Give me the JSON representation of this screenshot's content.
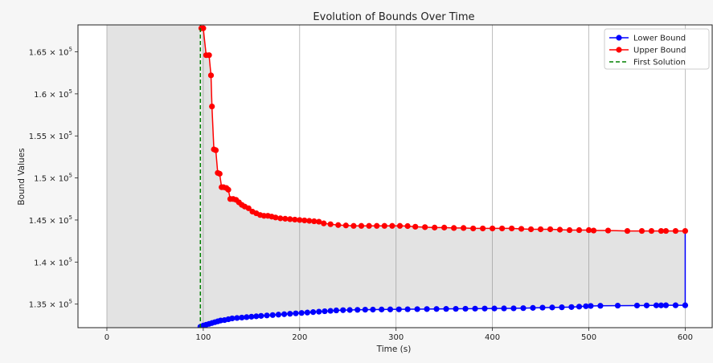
{
  "chart_data": {
    "type": "line",
    "title": "Evolution of Bounds Over Time",
    "xlabel": "Time (s)",
    "ylabel": "Bound Values",
    "xlim": [
      -30,
      628
    ],
    "ylim": [
      132200,
      168200
    ],
    "xticks": [
      0,
      100,
      200,
      300,
      400,
      500,
      600
    ],
    "yticks": [
      135000,
      140000,
      145000,
      150000,
      155000,
      160000,
      165000
    ],
    "ytick_mantissas": [
      "1.35",
      "1.4",
      "1.45",
      "1.5",
      "1.55",
      "1.6",
      "1.65"
    ],
    "ytick_base": "10",
    "ytick_exponent": "5",
    "grid": "vertical",
    "legend_position": "top-right",
    "shaded_regions": [
      {
        "x": [
          0,
          97
        ],
        "description": "before first solution"
      },
      {
        "x": [
          97,
          600
        ],
        "description": "gap between bounds"
      }
    ],
    "first_solution_x": 97,
    "series": [
      {
        "name": "Lower Bound",
        "color": "#0000ff",
        "marker": "circle",
        "x": [
          97,
          100,
          103,
          106,
          109,
          112,
          115,
          118,
          122,
          126,
          130,
          135,
          140,
          145,
          150,
          155,
          160,
          166,
          172,
          178,
          184,
          190,
          196,
          202,
          208,
          214,
          220,
          226,
          232,
          238,
          245,
          252,
          260,
          268,
          276,
          285,
          294,
          303,
          312,
          322,
          332,
          342,
          352,
          362,
          372,
          382,
          392,
          402,
          412,
          422,
          432,
          442,
          452,
          462,
          472,
          482,
          490,
          497,
          502,
          512,
          530,
          550,
          560,
          570,
          575,
          580,
          590,
          600,
          600
        ],
        "y": [
          132300,
          132450,
          132550,
          132650,
          132750,
          132850,
          132950,
          133050,
          133100,
          133200,
          133300,
          133350,
          133400,
          133450,
          133500,
          133550,
          133600,
          133650,
          133700,
          133750,
          133800,
          133850,
          133900,
          133950,
          134000,
          134050,
          134100,
          134150,
          134200,
          134250,
          134280,
          134300,
          134320,
          134340,
          134350,
          134360,
          134370,
          134380,
          134390,
          134400,
          134410,
          134420,
          134430,
          134440,
          134450,
          134460,
          134470,
          134480,
          134490,
          134500,
          134520,
          134550,
          134580,
          134600,
          134620,
          134650,
          134700,
          134750,
          134780,
          134800,
          134820,
          134830,
          134840,
          134850,
          134850,
          134860,
          134860,
          134860,
          143700
        ]
      },
      {
        "name": "Upper Bound",
        "color": "#ff0000",
        "marker": "circle",
        "x": [
          98,
          100,
          103,
          106,
          108,
          109,
          111,
          113,
          115,
          117,
          119,
          121,
          124,
          126,
          128,
          131,
          134,
          137,
          140,
          143,
          147,
          151,
          155,
          159,
          163,
          167,
          171,
          175,
          180,
          185,
          190,
          195,
          200,
          205,
          210,
          215,
          220,
          225,
          232,
          240,
          248,
          256,
          264,
          272,
          280,
          288,
          296,
          304,
          312,
          320,
          330,
          340,
          350,
          360,
          370,
          380,
          390,
          400,
          410,
          420,
          430,
          440,
          450,
          460,
          470,
          480,
          490,
          500,
          505,
          520,
          540,
          555,
          565,
          575,
          580,
          590,
          600
        ],
        "y": [
          167800,
          167800,
          164600,
          164600,
          162200,
          158500,
          153400,
          153300,
          150600,
          150500,
          148900,
          148900,
          148800,
          148600,
          147500,
          147500,
          147400,
          147100,
          146800,
          146600,
          146400,
          146000,
          145800,
          145600,
          145500,
          145500,
          145400,
          145300,
          145200,
          145150,
          145100,
          145050,
          145000,
          144950,
          144900,
          144850,
          144800,
          144600,
          144500,
          144400,
          144350,
          144300,
          144300,
          144300,
          144300,
          144300,
          144300,
          144300,
          144280,
          144200,
          144150,
          144100,
          144100,
          144050,
          144050,
          144000,
          144000,
          144000,
          144000,
          144000,
          143950,
          143900,
          143900,
          143900,
          143850,
          143800,
          143800,
          143800,
          143750,
          143750,
          143700,
          143700,
          143700,
          143700,
          143700,
          143700,
          143700
        ]
      },
      {
        "name": "First Solution",
        "color": "#008000",
        "marker": "none",
        "style": "dashed",
        "x": [
          97,
          97
        ],
        "y": [
          132200,
          168200
        ]
      }
    ]
  }
}
